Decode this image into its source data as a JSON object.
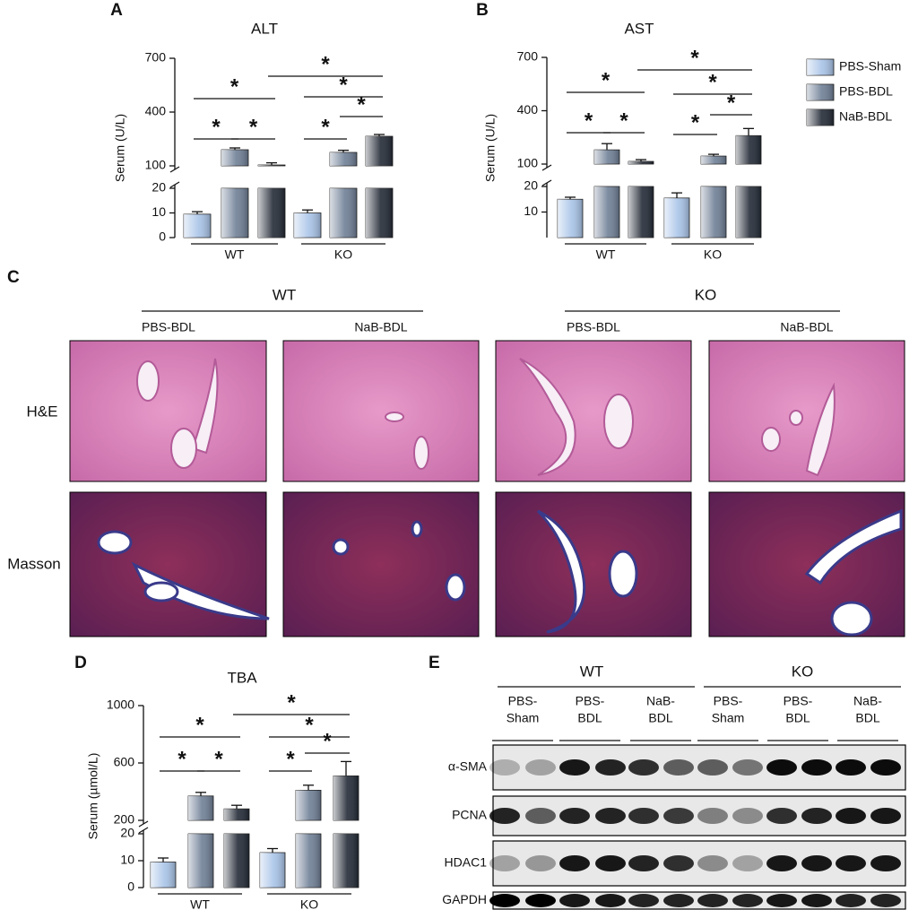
{
  "chart_data": [
    {
      "type": "bar",
      "panel": "A",
      "title": "ALT",
      "ylabel": "Serum (U/L)",
      "categories": [
        "WT",
        "KO"
      ],
      "series": [
        {
          "color": "#a9c4e8",
          "values": [
            9.5,
            10
          ],
          "errors": [
            1,
            1.2
          ]
        },
        {
          "color": "#6f7f96",
          "values": [
            190,
            175
          ],
          "errors": [
            10,
            12
          ]
        },
        {
          "color": "#232a36",
          "values": [
            105,
            265
          ],
          "errors": [
            12,
            10
          ]
        }
      ],
      "ylim": [
        0,
        700
      ],
      "y_break": [
        20,
        100
      ],
      "yticks": [
        0,
        10,
        20,
        100,
        400,
        700
      ],
      "significance": [
        "*",
        "*",
        "*",
        "*",
        "*",
        "*",
        "*"
      ],
      "legend": false
    },
    {
      "type": "bar",
      "panel": "B",
      "title": "AST",
      "ylabel": "Serum (U/L)",
      "categories": [
        "WT",
        "KO"
      ],
      "series": [
        {
          "name": "PBS-Sham",
          "color": "#a9c4e8",
          "values": [
            15,
            15.5
          ],
          "errors": [
            0.8,
            2
          ]
        },
        {
          "name": "PBS-BDL",
          "color": "#6f7f96",
          "values": [
            180,
            145
          ],
          "errors": [
            35,
            10
          ]
        },
        {
          "name": "NaB-BDL",
          "color": "#232a36",
          "values": [
            115,
            260
          ],
          "errors": [
            10,
            40
          ]
        }
      ],
      "ylim": [
        0,
        700
      ],
      "y_break": [
        20,
        100
      ],
      "yticks": [
        10,
        20,
        100,
        400,
        700
      ],
      "significance": [
        "*",
        "*",
        "*",
        "*",
        "*",
        "*",
        "*"
      ],
      "legend": true
    },
    {
      "type": "bar",
      "panel": "D",
      "title": "TBA",
      "ylabel": "Serum (µmol/L)",
      "categories": [
        "WT",
        "KO"
      ],
      "series": [
        {
          "color": "#a9c4e8",
          "values": [
            9.5,
            13
          ],
          "errors": [
            1.5,
            1.5
          ]
        },
        {
          "color": "#6f7f96",
          "values": [
            370,
            410
          ],
          "errors": [
            25,
            35
          ]
        },
        {
          "color": "#232a36",
          "values": [
            280,
            510
          ],
          "errors": [
            25,
            100
          ]
        }
      ],
      "ylim": [
        0,
        1000
      ],
      "y_break": [
        20,
        200
      ],
      "yticks": [
        0,
        10,
        20,
        200,
        600,
        1000
      ],
      "significance": [
        "*",
        "*",
        "*",
        "*",
        "*",
        "*",
        "*"
      ],
      "legend": false
    }
  ],
  "histology": {
    "panel": "C",
    "groups": [
      {
        "label": "WT",
        "conditions": [
          "PBS-BDL",
          "NaB-BDL"
        ]
      },
      {
        "label": "KO",
        "conditions": [
          "PBS-BDL",
          "NaB-BDL"
        ]
      }
    ],
    "stains": [
      "H&E",
      "Masson"
    ]
  },
  "western_blot": {
    "panel": "E",
    "groups": [
      {
        "label": "WT",
        "conditions": [
          [
            "PBS-",
            "Sham"
          ],
          [
            "PBS-",
            "BDL"
          ],
          [
            "NaB-",
            "BDL"
          ]
        ]
      },
      {
        "label": "KO",
        "conditions": [
          [
            "PBS-",
            "Sham"
          ],
          [
            "PBS-",
            "BDL"
          ],
          [
            "NaB-",
            "BDL"
          ]
        ]
      }
    ],
    "rows": [
      "α-SMA",
      "PCNA",
      "HDAC1",
      "GAPDH"
    ]
  }
}
